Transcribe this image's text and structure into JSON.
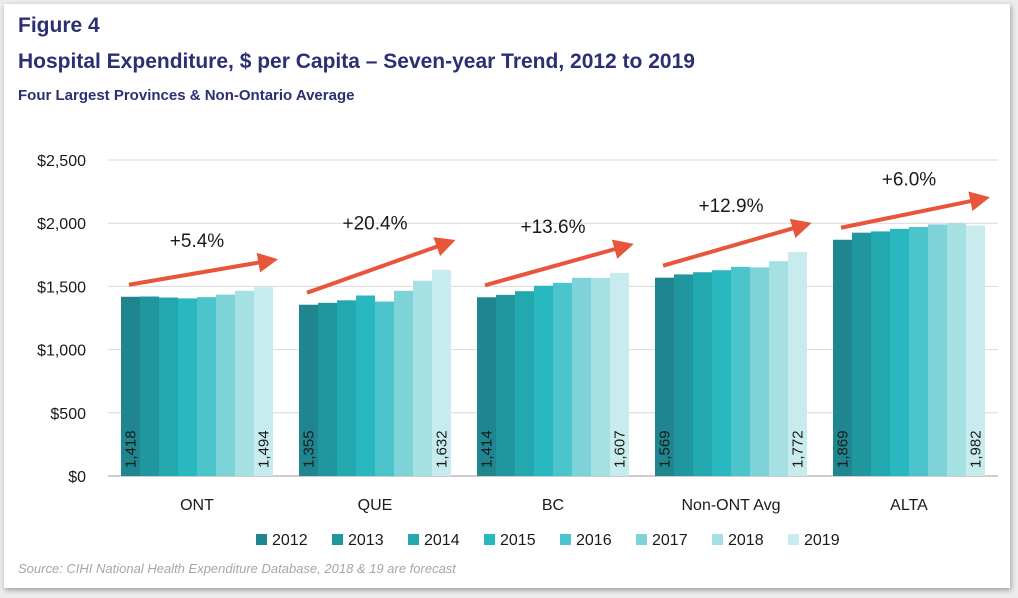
{
  "header": {
    "figure_label": "Figure 4",
    "title": "Hospital Expenditure, $ per Capita – Seven-year Trend, 2012 to 2019",
    "subtitle": "Four Largest Provinces & Non-Ontario Average"
  },
  "source": "Source: CIHI National Health Expenditure Database, 2018 & 19 are forecast",
  "chart_data": {
    "type": "bar",
    "categories": [
      "ONT",
      "QUE",
      "BC",
      "Non-ONT Avg",
      "ALTA"
    ],
    "series": [
      {
        "name": "2012",
        "color": "#1f868f",
        "values": [
          1418,
          1355,
          1414,
          1569,
          1869
        ]
      },
      {
        "name": "2013",
        "color": "#20969f",
        "values": [
          1420,
          1370,
          1433,
          1595,
          1925
        ]
      },
      {
        "name": "2014",
        "color": "#23a8b0",
        "values": [
          1412,
          1390,
          1462,
          1612,
          1935
        ]
      },
      {
        "name": "2015",
        "color": "#29b8bf",
        "values": [
          1405,
          1428,
          1505,
          1628,
          1955
        ]
      },
      {
        "name": "2016",
        "color": "#4cc4cc",
        "values": [
          1415,
          1380,
          1528,
          1655,
          1970
        ]
      },
      {
        "name": "2017",
        "color": "#7ed3d8",
        "values": [
          1435,
          1465,
          1568,
          1650,
          1990
        ]
      },
      {
        "name": "2018",
        "color": "#a5e0e3",
        "values": [
          1465,
          1545,
          1567,
          1700,
          2000
        ]
      },
      {
        "name": "2019",
        "color": "#c8ecee",
        "values": [
          1494,
          1632,
          1607,
          1772,
          1982
        ]
      }
    ],
    "data_labels": [
      {
        "first": "1,418",
        "last": "1,494"
      },
      {
        "first": "1,355",
        "last": "1,632"
      },
      {
        "first": "1,414",
        "last": "1,607"
      },
      {
        "first": "1,569",
        "last": "1,772"
      },
      {
        "first": "1,869",
        "last": "1,982"
      }
    ],
    "growth_annotations": [
      "+5.4%",
      "+20.4%",
      "+13.6%",
      "+12.9%",
      "+6.0%"
    ],
    "y_ticks": [
      0,
      500,
      1000,
      1500,
      2000,
      2500
    ],
    "y_tick_labels": [
      "$0",
      "$500",
      "$1,000",
      "$1,500",
      "$2,000",
      "$2,500"
    ],
    "ylim": [
      0,
      2500
    ],
    "xlabel": "",
    "ylabel": "",
    "grid": true,
    "legend_position": "bottom",
    "arrow_color": "#e8553a"
  }
}
